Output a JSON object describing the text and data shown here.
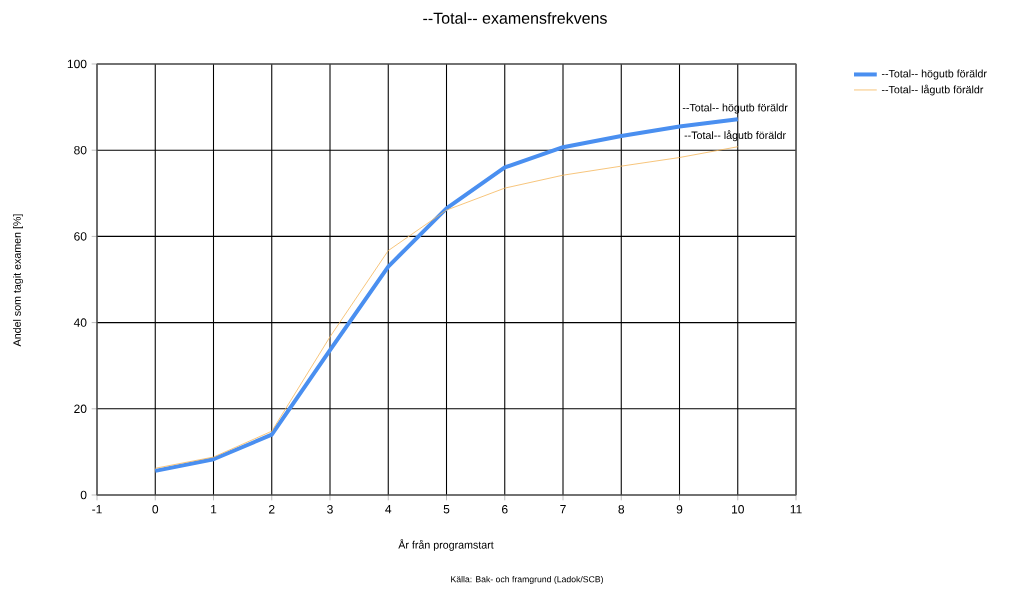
{
  "chart_data": {
    "type": "line",
    "title": "--Total-- examensfrekvens",
    "xlabel": "År från programstart",
    "ylabel": "Andel som tagit examen [%]",
    "x": [
      0,
      1,
      2,
      3,
      4,
      5,
      6,
      7,
      8,
      9,
      10
    ],
    "series": [
      {
        "name": "--Total-- högutb föräldr",
        "color": "#4a8ff0",
        "values": [
          5.6,
          8.3,
          14,
          33.6,
          53,
          66.5,
          76,
          80.7,
          83.3,
          85.5,
          87.2
        ]
      },
      {
        "name": "--Total-- lågutb föräldr",
        "color": "#f5b65a",
        "values": [
          6.2,
          8.8,
          14.8,
          36.7,
          56.7,
          66.1,
          71.2,
          74.2,
          76.3,
          78.3,
          80.8
        ]
      }
    ],
    "xlim": [
      -1,
      11
    ],
    "xticks": [
      -1,
      0,
      1,
      2,
      3,
      4,
      5,
      6,
      7,
      8,
      9,
      10,
      11
    ],
    "ylim": [
      0,
      100
    ],
    "yticks": [
      0,
      20,
      40,
      60,
      80,
      100
    ],
    "grid": true,
    "legend": "top right",
    "marker": "none",
    "line_style": "solid",
    "annotations": [
      {
        "text": "--Total-- högutb föräldr",
        "x": 10,
        "y": 87.2
      },
      {
        "text": "--Total-- lågutb föräldr",
        "x": 10,
        "y": 80.8
      },
      "Källa: Bak- och framgrund (Ladok/SCB)"
    ]
  }
}
